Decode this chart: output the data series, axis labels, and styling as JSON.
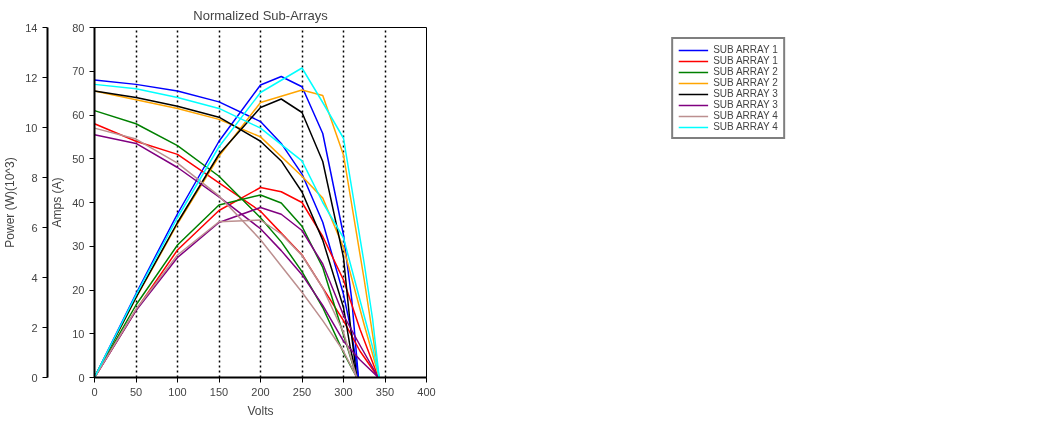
{
  "chart_data": {
    "type": "line",
    "title": "Normalized Sub-Arrays",
    "xlabel": "Volts",
    "ylabel": "Power (W)(10^3)",
    "y2label": "Amps (A)",
    "xlim": [
      0,
      400
    ],
    "xticks": [
      0,
      50,
      100,
      150,
      200,
      250,
      300,
      350,
      400
    ],
    "ylim": [
      0,
      14
    ],
    "yticks": [
      0,
      2,
      4,
      6,
      8,
      10,
      12,
      14
    ],
    "y2lim": [
      0,
      80
    ],
    "y2ticks": [
      0,
      10,
      20,
      30,
      40,
      50,
      60,
      70,
      80
    ],
    "grid": "x",
    "legend": "right",
    "marker": "none",
    "line_style": "solid",
    "series": [
      {
        "name": "SUB ARRAY 1",
        "color": "#0000ff",
        "axis": "y2",
        "x": [
          0,
          50,
          100,
          150,
          200,
          225,
          250,
          275,
          300,
          310,
          318
        ],
        "values": [
          68,
          67,
          65.5,
          63,
          58.5,
          53.5,
          46.5,
          35.5,
          19,
          10,
          0
        ]
      },
      {
        "color": "#0000ff",
        "axis": "y",
        "x": [
          0,
          50,
          100,
          150,
          200,
          225,
          250,
          275,
          300,
          310,
          318
        ],
        "values": [
          0,
          3.35,
          6.55,
          9.45,
          11.7,
          12.04,
          11.63,
          9.76,
          5.7,
          3.1,
          0
        ]
      },
      {
        "name": "SUB ARRAY 1",
        "color": "#ff0000",
        "axis": "y2",
        "x": [
          0,
          50,
          100,
          150,
          200,
          225,
          250,
          275,
          300,
          320,
          342
        ],
        "values": [
          58,
          54,
          51,
          44.5,
          38,
          33,
          28,
          20.5,
          13,
          6,
          0
        ]
      },
      {
        "color": "#ff0000",
        "axis": "y",
        "x": [
          0,
          50,
          100,
          150,
          200,
          225,
          250,
          275,
          300,
          320,
          342
        ],
        "values": [
          0,
          2.7,
          5.1,
          6.68,
          7.6,
          7.43,
          7,
          5.64,
          3.9,
          1.92,
          0
        ]
      },
      {
        "name": "SUB ARRAY 2",
        "color": "#008000",
        "axis": "y2",
        "x": [
          0,
          50,
          100,
          150,
          200,
          225,
          250,
          275,
          300,
          316
        ],
        "values": [
          61,
          58,
          53,
          46,
          36.5,
          31,
          24.2,
          16,
          5.7,
          0
        ]
      },
      {
        "color": "#008000",
        "axis": "y",
        "x": [
          0,
          50,
          100,
          150,
          200,
          225,
          250,
          275,
          300,
          316
        ],
        "values": [
          0,
          2.9,
          5.3,
          6.9,
          7.3,
          6.98,
          6.05,
          4.4,
          1.71,
          0
        ]
      },
      {
        "name": "SUB ARRAY 2",
        "color": "#ffa500",
        "axis": "y2",
        "x": [
          0,
          50,
          100,
          150,
          200,
          250,
          275,
          300,
          325,
          343
        ],
        "values": [
          65.5,
          63.5,
          61.5,
          59,
          55,
          46,
          41,
          29.7,
          12,
          0
        ]
      },
      {
        "color": "#ffa500",
        "axis": "y",
        "x": [
          0,
          50,
          100,
          150,
          200,
          250,
          275,
          300,
          325,
          343
        ],
        "values": [
          0,
          3.18,
          6.15,
          8.85,
          11,
          11.5,
          11.28,
          8.9,
          3.9,
          0
        ]
      },
      {
        "name": "SUB ARRAY 3",
        "color": "#000000",
        "axis": "y2",
        "x": [
          0,
          50,
          100,
          150,
          200,
          225,
          250,
          275,
          300,
          308,
          316
        ],
        "values": [
          65.5,
          64,
          62,
          59.5,
          54,
          49.5,
          42.4,
          31.4,
          16,
          7,
          0
        ]
      },
      {
        "color": "#000000",
        "axis": "y",
        "x": [
          0,
          50,
          100,
          150,
          200,
          225,
          250,
          275,
          300,
          308,
          316
        ],
        "values": [
          0,
          3.2,
          6.2,
          8.93,
          10.8,
          11.14,
          10.6,
          8.64,
          4.8,
          2.16,
          0
        ]
      },
      {
        "name": "SUB ARRAY 3",
        "color": "#800080",
        "axis": "y2",
        "x": [
          0,
          50,
          100,
          150,
          200,
          225,
          250,
          275,
          300,
          320,
          342
        ],
        "values": [
          55.5,
          53.5,
          48,
          41.3,
          34,
          29,
          23.5,
          16.5,
          8.3,
          4,
          0
        ]
      },
      {
        "color": "#800080",
        "axis": "y",
        "x": [
          0,
          50,
          100,
          150,
          200,
          225,
          250,
          275,
          300,
          320,
          342
        ],
        "values": [
          0,
          2.68,
          4.8,
          6.2,
          6.8,
          6.53,
          5.88,
          4.54,
          2.49,
          1.28,
          0
        ]
      },
      {
        "name": "SUB ARRAY 4",
        "color": "#bc8f8f",
        "axis": "y2",
        "x": [
          0,
          50,
          100,
          150,
          200,
          225,
          250,
          275,
          300,
          316
        ],
        "values": [
          57,
          54.5,
          49,
          41.5,
          31.5,
          25.5,
          19.5,
          13,
          6,
          0
        ]
      },
      {
        "color": "#bc8f8f",
        "axis": "y",
        "x": [
          0,
          50,
          100,
          150,
          200,
          225,
          250,
          275,
          300,
          316
        ],
        "values": [
          0,
          2.73,
          4.9,
          6.23,
          6.3,
          5.74,
          4.88,
          3.58,
          1.8,
          0
        ]
      },
      {
        "name": "SUB ARRAY 4",
        "color": "#00ffff",
        "axis": "y2",
        "x": [
          0,
          50,
          100,
          150,
          200,
          250,
          275,
          300,
          325,
          335,
          343
        ],
        "values": [
          67,
          66,
          64,
          61.5,
          57,
          49.5,
          40,
          31.9,
          14,
          7,
          0
        ]
      },
      {
        "color": "#00ffff",
        "axis": "y",
        "x": [
          0,
          50,
          100,
          150,
          200,
          250,
          275,
          300,
          325,
          335,
          343
        ],
        "values": [
          0,
          3.3,
          6.4,
          9.23,
          11.4,
          12.38,
          11,
          9.57,
          4.55,
          2.35,
          0
        ]
      }
    ]
  }
}
